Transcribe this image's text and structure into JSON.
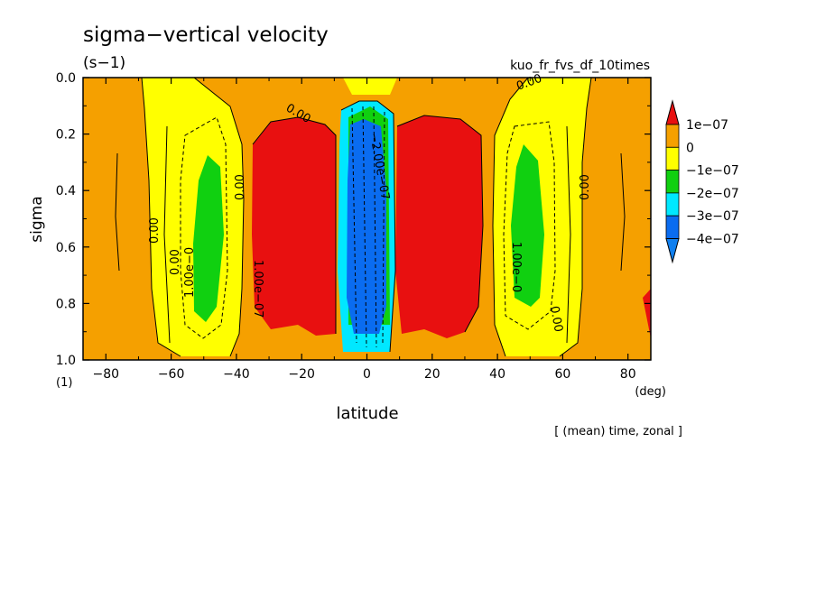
{
  "chart_data": {
    "type": "heatmap",
    "title": "sigma−vertical velocity",
    "units_label": "(s−1)",
    "run_label": "kuo_fr_fvs_df_10times",
    "xlabel": "latitude",
    "xunits": "(deg)",
    "ylabel": "sigma",
    "yunits": "(1)",
    "footer": "[ (mean) time, zonal ]",
    "xlim": [
      -87,
      87
    ],
    "ylim": [
      0.0,
      1.0
    ],
    "y_inverted": true,
    "x_ticks": [
      "−80",
      "−60",
      "−40",
      "−20",
      "0",
      "20",
      "40",
      "60",
      "80"
    ],
    "y_ticks": [
      "0.0",
      "0.2",
      "0.4",
      "0.6",
      "0.8",
      "1.0"
    ],
    "legend": {
      "labels": [
        "1e−07",
        "0",
        "−1e−07",
        "−2e−07",
        "−3e−07",
        "−4e−07"
      ],
      "colors": [
        "#e81010",
        "#f5a000",
        "#ffff00",
        "#10d010",
        "#00e8ff",
        "#0a6cf0",
        "#1080f0"
      ]
    },
    "levels": [
      -4e-07,
      -3e-07,
      -2e-07,
      -1e-07,
      0,
      1e-07
    ],
    "lat_bands": [
      {
        "from": -87,
        "to": -72,
        "value": 2e-08
      },
      {
        "from": -72,
        "to": -44,
        "value": -1.2e-07
      },
      {
        "from": -44,
        "to": -10,
        "value": 1.5e-07
      },
      {
        "from": -10,
        "to": 10,
        "value": -3.6e-07
      },
      {
        "from": 10,
        "to": 40,
        "value": 1.5e-07
      },
      {
        "from": 40,
        "to": 70,
        "value": -1.2e-07
      },
      {
        "from": 70,
        "to": 87,
        "value": 2e-08
      }
    ],
    "contour_labels": [
      "0.00",
      "1.00e−0",
      "1.00e−07",
      "−2.00e−07"
    ]
  }
}
